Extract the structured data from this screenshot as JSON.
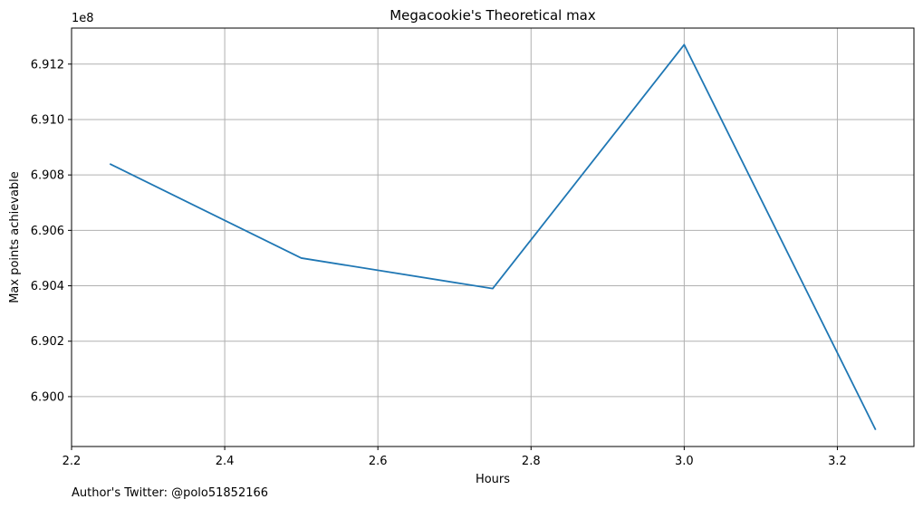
{
  "chart_data": {
    "type": "line",
    "title": "Megacookie's Theoretical max",
    "xlabel": "Hours",
    "ylabel": "Max points achievable",
    "offset_label": "1e8",
    "xlim": [
      2.2,
      3.3
    ],
    "ylim": [
      6.8982,
      6.9133
    ],
    "x_ticks": [
      2.2,
      2.4,
      2.6,
      2.8,
      3.0,
      3.2
    ],
    "x_tick_labels": [
      "2.2",
      "2.4",
      "2.6",
      "2.8",
      "3.0",
      "3.2"
    ],
    "y_ticks": [
      6.9,
      6.902,
      6.904,
      6.906,
      6.908,
      6.91,
      6.912
    ],
    "y_tick_labels": [
      "6.900",
      "6.902",
      "6.904",
      "6.906",
      "6.908",
      "6.910",
      "6.912"
    ],
    "grid": true,
    "series": [
      {
        "x": [
          2.25,
          2.5,
          2.75,
          3.0,
          3.25
        ],
        "values": [
          6.9084,
          6.905,
          6.9039,
          6.9127,
          6.8988
        ],
        "color": "#1f77b4"
      }
    ]
  },
  "footnote": "Author's Twitter: @polo51852166"
}
